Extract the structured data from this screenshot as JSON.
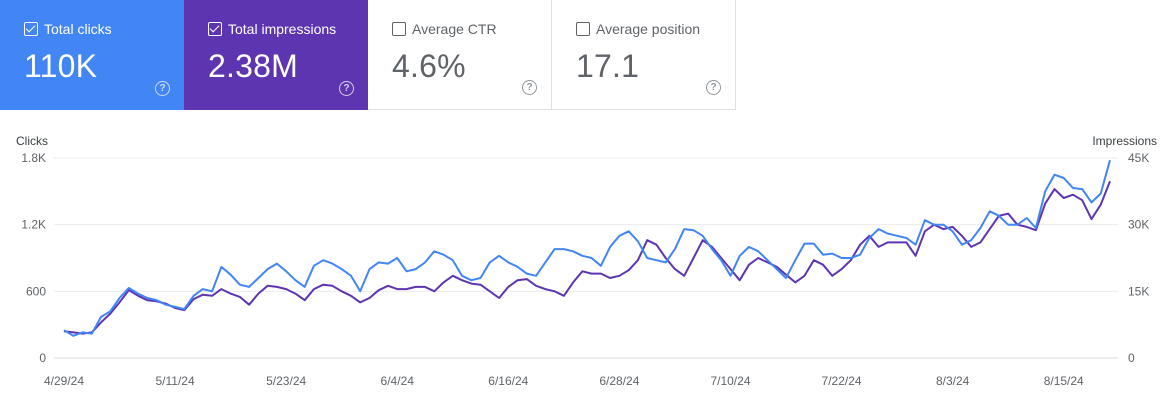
{
  "metrics": [
    {
      "label": "Total clicks",
      "value": "110K",
      "checked": true,
      "color": "#4285f4"
    },
    {
      "label": "Total impressions",
      "value": "2.38M",
      "checked": true,
      "color": "#5e35b1"
    },
    {
      "label": "Average CTR",
      "value": "4.6%",
      "checked": false
    },
    {
      "label": "Average position",
      "value": "17.1",
      "checked": false
    }
  ],
  "chart_data": {
    "type": "line",
    "left_axis_label": "Clicks",
    "right_axis_label": "Impressions",
    "left_ticks": [
      "1.8K",
      "1.2K",
      "600",
      "0"
    ],
    "right_ticks": [
      "45K",
      "30K",
      "15K",
      "0"
    ],
    "left_ylim": [
      0,
      1800
    ],
    "right_ylim": [
      0,
      45000
    ],
    "x_tick_labels": [
      "4/29/24",
      "5/11/24",
      "5/23/24",
      "6/4/24",
      "6/16/24",
      "6/28/24",
      "7/10/24",
      "7/22/24",
      "8/3/24",
      "8/15/24"
    ],
    "grid": true,
    "series": [
      {
        "name": "Clicks",
        "axis": "left",
        "color": "#4285f4",
        "values": [
          250,
          200,
          230,
          220,
          370,
          420,
          540,
          630,
          580,
          540,
          520,
          480,
          460,
          440,
          560,
          620,
          600,
          820,
          750,
          660,
          640,
          720,
          800,
          850,
          780,
          700,
          640,
          830,
          880,
          850,
          800,
          740,
          600,
          800,
          860,
          850,
          900,
          780,
          800,
          860,
          960,
          930,
          880,
          740,
          700,
          720,
          860,
          920,
          860,
          820,
          760,
          740,
          860,
          980,
          980,
          960,
          920,
          900,
          830,
          1000,
          1100,
          1140,
          1050,
          900,
          880,
          860,
          980,
          1160,
          1150,
          1100,
          980,
          880,
          740,
          920,
          1000,
          960,
          880,
          800,
          720,
          880,
          1030,
          1030,
          930,
          940,
          900,
          900,
          930,
          1080,
          1160,
          1120,
          1100,
          1080,
          1020,
          1240,
          1200,
          1200,
          1140,
          1020,
          1060,
          1170,
          1320,
          1280,
          1200,
          1200,
          1260,
          1170,
          1500,
          1650,
          1620,
          1530,
          1520,
          1400,
          1480,
          1780
        ]
      },
      {
        "name": "Impressions",
        "axis": "left",
        "color": "#5e35b1",
        "values": [
          240,
          230,
          220,
          230,
          320,
          400,
          500,
          610,
          560,
          520,
          510,
          490,
          450,
          430,
          530,
          570,
          560,
          620,
          580,
          550,
          480,
          580,
          650,
          640,
          620,
          580,
          520,
          620,
          660,
          650,
          600,
          560,
          500,
          540,
          610,
          650,
          620,
          620,
          640,
          640,
          600,
          680,
          740,
          700,
          670,
          660,
          600,
          540,
          640,
          700,
          710,
          650,
          620,
          600,
          560,
          680,
          780,
          760,
          760,
          720,
          740,
          790,
          880,
          1060,
          1020,
          900,
          800,
          740,
          900,
          1060,
          1000,
          900,
          800,
          700,
          840,
          900,
          860,
          820,
          750,
          680,
          740,
          880,
          840,
          740,
          800,
          880,
          1020,
          1100,
          1000,
          1040,
          1040,
          1040,
          920,
          1140,
          1200,
          1160,
          1180,
          1100,
          1000,
          1040,
          1160,
          1280,
          1300,
          1200,
          1180,
          1150,
          1390,
          1520,
          1440,
          1470,
          1420,
          1250,
          1380,
          1590
        ]
      }
    ]
  }
}
